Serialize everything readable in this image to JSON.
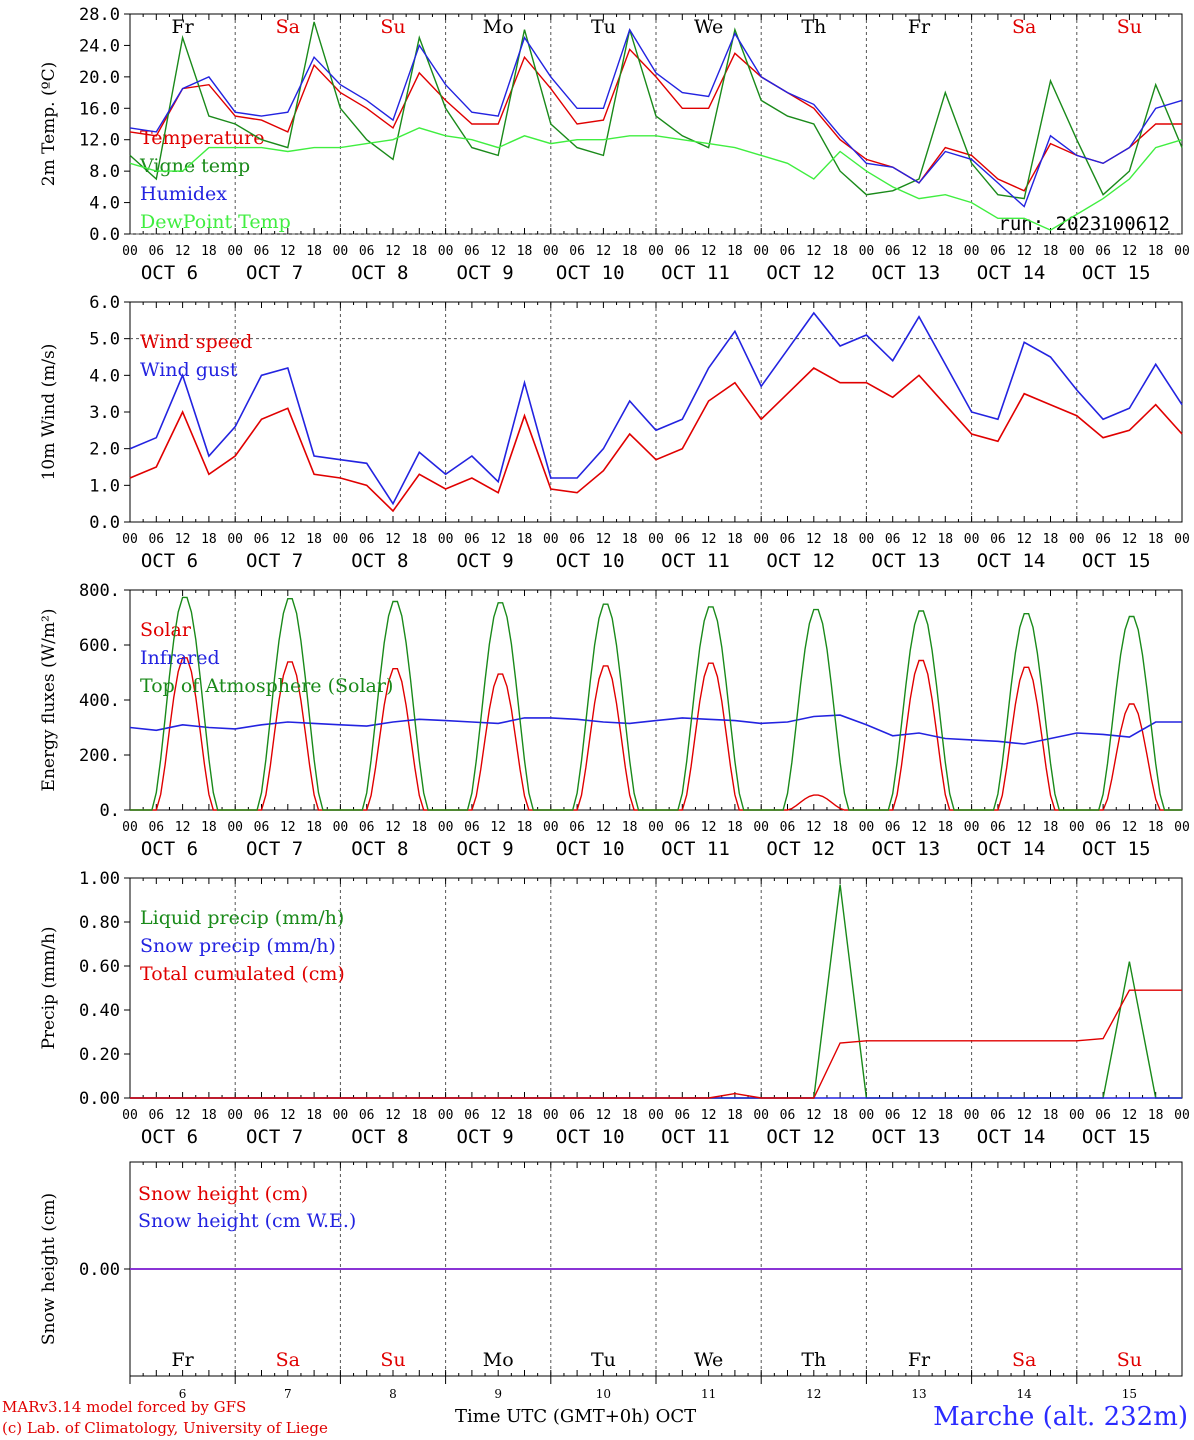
{
  "chart_data": [
    {
      "type": "line",
      "ylabel": "2m Temp. (ºC)",
      "ylim": [
        0,
        28
      ],
      "yticks": [
        "0.0",
        "4.0",
        "8.0",
        "12.0",
        "16.0",
        "20.0",
        "24.0",
        "28.0"
      ],
      "hlines": [
        0
      ],
      "day_labels": [
        "Fr",
        "Sa",
        "Su",
        "Mo",
        "Tu",
        "We",
        "Th",
        "Fr",
        "Sa",
        "Su"
      ],
      "day_label_colors": [
        "#000000",
        "#e00000",
        "#e00000",
        "#000000",
        "#000000",
        "#000000",
        "#000000",
        "#000000",
        "#e00000",
        "#e00000"
      ],
      "annotation": "run: 2023100612",
      "x_hours": [
        0,
        6,
        12,
        18,
        24,
        30,
        36,
        42,
        48,
        54,
        60,
        66,
        72,
        78,
        84,
        90,
        96,
        102,
        108,
        114,
        120,
        126,
        132,
        138,
        144,
        150,
        156,
        162,
        168,
        174,
        180,
        186,
        192,
        198,
        204,
        210,
        216,
        222,
        228,
        234,
        240
      ],
      "series": [
        {
          "name": "Temperature",
          "color": "#e00000",
          "values": [
            13,
            12.5,
            18.5,
            19,
            15,
            14.5,
            13,
            21.5,
            18,
            16,
            13.5,
            20.5,
            17,
            14,
            14,
            22.5,
            18.5,
            14,
            14.5,
            23.5,
            20,
            16,
            16,
            23,
            20,
            18,
            16,
            12,
            9.5,
            8.5,
            6.5,
            11,
            10,
            7,
            5.5,
            11.5,
            10,
            9,
            11,
            14,
            14
          ]
        },
        {
          "name": "Vigne temp",
          "color": "#1a8a1a",
          "values": [
            10,
            7,
            25,
            15,
            14,
            12,
            11,
            27,
            16,
            12,
            9.5,
            25,
            16,
            11,
            10,
            26,
            14,
            11,
            10,
            26,
            15,
            12.5,
            11,
            26,
            17,
            15,
            14,
            8,
            5,
            5.5,
            7,
            18,
            9,
            5,
            4.5,
            19.5,
            12,
            5,
            8,
            19,
            11
          ]
        },
        {
          "name": "Humidex",
          "color": "#2323e0",
          "values": [
            13.5,
            13,
            18.5,
            20,
            15.5,
            15,
            15.5,
            22.5,
            19,
            17,
            14.5,
            24,
            19,
            15.5,
            15,
            25,
            20,
            16,
            16,
            26,
            20.5,
            18,
            17.5,
            25.5,
            20,
            18,
            16.5,
            12.5,
            9,
            8.5,
            6.5,
            10.5,
            9.5,
            6.5,
            3.5,
            12.5,
            10,
            9,
            11,
            16,
            17
          ]
        },
        {
          "name": "DewPoint Temp",
          "color": "#40ee40",
          "values": [
            9,
            8,
            8,
            11,
            11,
            11,
            10.5,
            11,
            11,
            11.5,
            12,
            13.5,
            12.5,
            12,
            11,
            12.5,
            11.5,
            12,
            12,
            12.5,
            12.5,
            12,
            11.5,
            11,
            10,
            9,
            7,
            10.5,
            8,
            6,
            4.5,
            5,
            4,
            2,
            2,
            0.5,
            2.5,
            4.5,
            7,
            11,
            12
          ]
        }
      ]
    },
    {
      "type": "line",
      "ylabel": "10m Wind (m/s)",
      "ylim": [
        0,
        6
      ],
      "yticks": [
        "0.0",
        "1.0",
        "2.0",
        "3.0",
        "4.0",
        "5.0",
        "6.0"
      ],
      "hlines": [
        5
      ],
      "x_hours": [
        0,
        6,
        12,
        18,
        24,
        30,
        36,
        42,
        48,
        54,
        60,
        66,
        72,
        78,
        84,
        90,
        96,
        102,
        108,
        114,
        120,
        126,
        132,
        138,
        144,
        150,
        156,
        162,
        168,
        174,
        180,
        186,
        192,
        198,
        204,
        210,
        216,
        222,
        228,
        234,
        240
      ],
      "series": [
        {
          "name": "Wind speed",
          "color": "#e00000",
          "values": [
            1.2,
            1.5,
            3,
            1.3,
            1.8,
            2.8,
            3.1,
            1.3,
            1.2,
            1,
            0.3,
            1.3,
            0.9,
            1.2,
            0.8,
            2.9,
            0.9,
            0.8,
            1.4,
            2.4,
            1.7,
            2,
            3.3,
            3.8,
            2.8,
            3.5,
            4.2,
            3.8,
            3.8,
            3.4,
            4,
            3.2,
            2.4,
            2.2,
            3.5,
            3.2,
            2.9,
            2.3,
            2.5,
            3.2,
            2.4
          ]
        },
        {
          "name": "Wind gust",
          "color": "#2323e0",
          "values": [
            2,
            2.3,
            4,
            1.8,
            2.6,
            4,
            4.2,
            1.8,
            1.7,
            1.6,
            0.5,
            1.9,
            1.3,
            1.8,
            1.1,
            3.8,
            1.2,
            1.2,
            2,
            3.3,
            2.5,
            2.8,
            4.2,
            5.2,
            3.7,
            4.7,
            5.7,
            4.8,
            5.1,
            4.4,
            5.6,
            4.3,
            3,
            2.8,
            4.9,
            4.5,
            3.6,
            2.8,
            3.1,
            4.3,
            3.2
          ]
        }
      ]
    },
    {
      "type": "line",
      "ylabel": "Energy fluxes (W/m²)",
      "ylim": [
        0,
        800
      ],
      "yticks": [
        "0.",
        "200.",
        "400.",
        "600.",
        "800."
      ],
      "hlines": [],
      "solar_peaks": [
        560,
        545,
        520,
        500,
        530,
        540,
        55,
        550,
        525,
        390
      ],
      "toa_peaks": [
        780,
        775,
        765,
        760,
        755,
        745,
        735,
        730,
        720,
        710
      ],
      "x_hours": [
        0,
        6,
        12,
        18,
        24,
        30,
        36,
        42,
        48,
        54,
        60,
        66,
        72,
        78,
        84,
        90,
        96,
        102,
        108,
        114,
        120,
        126,
        132,
        138,
        144,
        150,
        156,
        162,
        168,
        174,
        180,
        186,
        192,
        198,
        204,
        210,
        216,
        222,
        228,
        234,
        240
      ],
      "series": [
        {
          "name": "Solar",
          "color": "#e00000",
          "values": []
        },
        {
          "name": "Infrared",
          "color": "#2323e0",
          "values": [
            300,
            290,
            310,
            300,
            295,
            310,
            320,
            315,
            310,
            305,
            320,
            330,
            325,
            320,
            315,
            335,
            335,
            330,
            320,
            315,
            325,
            335,
            330,
            325,
            315,
            320,
            340,
            345,
            310,
            270,
            280,
            260,
            255,
            250,
            240,
            260,
            280,
            275,
            265,
            320,
            320
          ]
        },
        {
          "name": "Top of Atmosphere (Solar)",
          "color": "#1a8a1a",
          "values": []
        }
      ]
    },
    {
      "type": "line",
      "ylabel": "Precip (mm/h)",
      "ylim": [
        0,
        1
      ],
      "yticks": [
        "0.00",
        "0.20",
        "0.40",
        "0.60",
        "0.80",
        "1.00"
      ],
      "hlines": [],
      "x_hours": [
        0,
        6,
        12,
        18,
        24,
        30,
        36,
        42,
        48,
        54,
        60,
        66,
        72,
        78,
        84,
        90,
        96,
        102,
        108,
        114,
        120,
        126,
        132,
        138,
        144,
        150,
        156,
        162,
        168,
        174,
        180,
        186,
        192,
        198,
        204,
        210,
        216,
        222,
        228,
        234,
        240
      ],
      "series": [
        {
          "name": "Liquid precip (mm/h)",
          "color": "#1a8a1a",
          "values": [
            0,
            0,
            0,
            0,
            0,
            0,
            0,
            0,
            0,
            0,
            0,
            0,
            0,
            0,
            0,
            0,
            0,
            0,
            0,
            0,
            0,
            0,
            0,
            0,
            0,
            0,
            0,
            0.97,
            0,
            0,
            0,
            0,
            0,
            0,
            0,
            0,
            0,
            0,
            0.62,
            0,
            0
          ]
        },
        {
          "name": "Snow precip (mm/h)",
          "color": "#2323e0",
          "values": [
            0,
            0,
            0,
            0,
            0,
            0,
            0,
            0,
            0,
            0,
            0,
            0,
            0,
            0,
            0,
            0,
            0,
            0,
            0,
            0,
            0,
            0,
            0,
            0,
            0,
            0,
            0,
            0,
            0,
            0,
            0,
            0,
            0,
            0,
            0,
            0,
            0,
            0,
            0,
            0,
            0
          ]
        },
        {
          "name": "Total cumulated (cm)",
          "color": "#e00000",
          "values": [
            0,
            0,
            0,
            0,
            0,
            0,
            0,
            0,
            0,
            0,
            0,
            0,
            0,
            0,
            0,
            0,
            0,
            0,
            0,
            0,
            0,
            0,
            0,
            0.02,
            0,
            0,
            0,
            0.25,
            0.26,
            0.26,
            0.26,
            0.26,
            0.26,
            0.26,
            0.26,
            0.26,
            0.26,
            0.27,
            0.49,
            0.49,
            0.49
          ]
        }
      ]
    },
    {
      "type": "line",
      "ylabel": "Snow height (cm)",
      "ylim": [
        -1,
        1
      ],
      "yticks": [
        "0.00"
      ],
      "hlines": [],
      "day_labels": [
        "Fr",
        "Sa",
        "Su",
        "Mo",
        "Tu",
        "We",
        "Th",
        "Fr",
        "Sa",
        "Su"
      ],
      "day_label_colors": [
        "#000000",
        "#e00000",
        "#e00000",
        "#000000",
        "#000000",
        "#000000",
        "#000000",
        "#000000",
        "#e00000",
        "#e00000"
      ],
      "day_numbers": [
        "6",
        "7",
        "8",
        "9",
        "10",
        "11",
        "12",
        "13",
        "14",
        "15"
      ],
      "x_hours": [
        0,
        240
      ],
      "series": [
        {
          "name": "Snow height (cm)",
          "color": "#e00000",
          "values": [
            0,
            0
          ]
        },
        {
          "name": "Snow height (cm W.E.)",
          "color": "#2323e0",
          "values": [
            0,
            0
          ]
        }
      ]
    }
  ],
  "x_axis": {
    "hour_ticks": [
      "00",
      "06",
      "12",
      "18"
    ],
    "final_tick": "00",
    "dates": [
      "OCT  6",
      "OCT  7",
      "OCT  8",
      "OCT  9",
      "OCT 10",
      "OCT 11",
      "OCT 12",
      "OCT 13",
      "OCT 14",
      "OCT 15"
    ]
  },
  "footer": {
    "model_line": "MARv3.14 model forced by GFS",
    "credit_line": "(c) Lab. of Climatology, University of Liege",
    "axis_title": "Time UTC (GMT+0h) OCT",
    "station": "Marche (alt. 232m)"
  }
}
